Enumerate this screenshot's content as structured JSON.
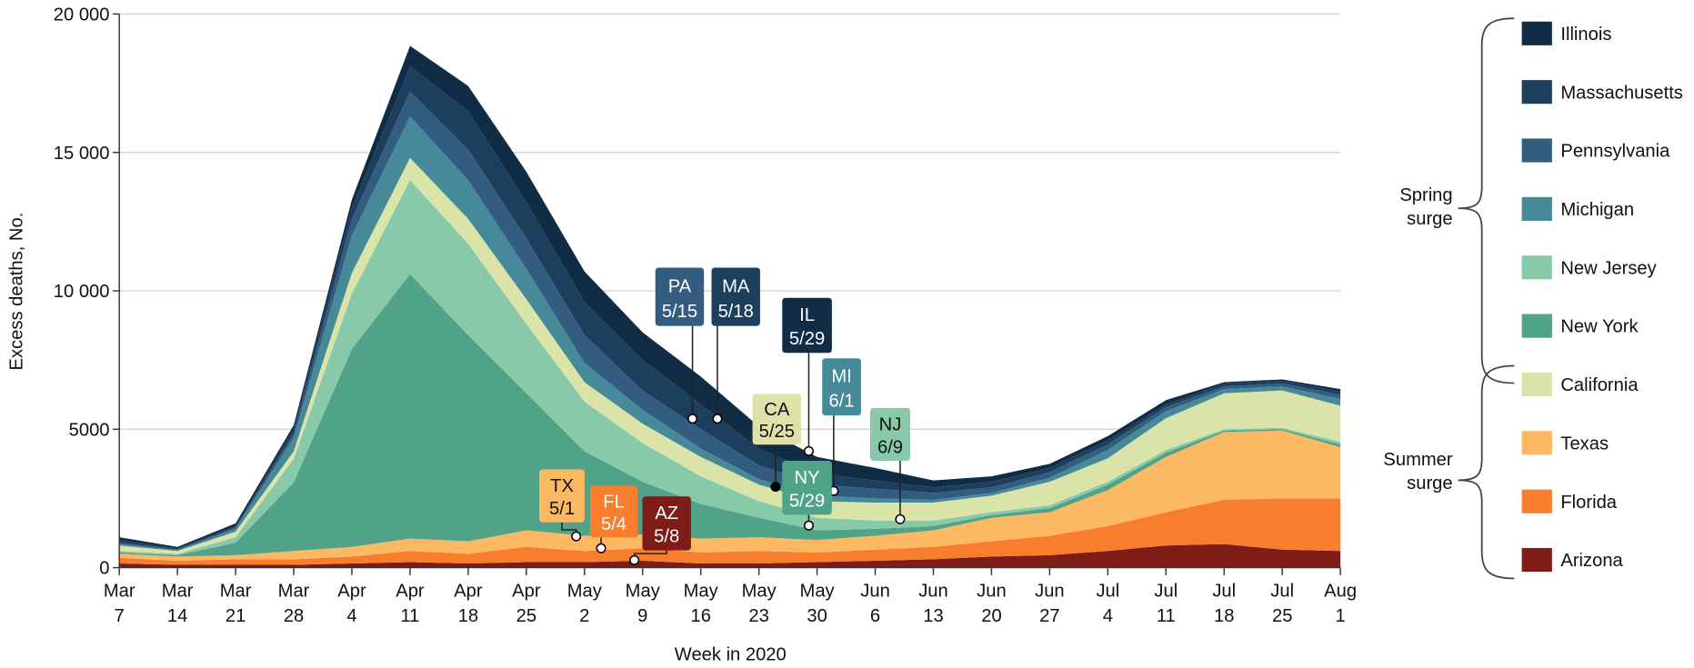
{
  "chart_data": {
    "type": "area",
    "stacked": true,
    "title": "",
    "xlabel": "Week in 2020",
    "ylabel": "Excess deaths, No.",
    "ylim": [
      0,
      20000
    ],
    "yticks": [
      0,
      5000,
      10000,
      15000,
      20000
    ],
    "ytick_labels": [
      "0",
      "5000",
      "10 000",
      "15 000",
      "20 000"
    ],
    "grid": "horizontal",
    "legend_position": "right",
    "categories": [
      [
        "Mar",
        "7"
      ],
      [
        "Mar",
        "14"
      ],
      [
        "Mar",
        "21"
      ],
      [
        "Mar",
        "28"
      ],
      [
        "Apr",
        "4"
      ],
      [
        "Apr",
        "11"
      ],
      [
        "Apr",
        "18"
      ],
      [
        "Apr",
        "25"
      ],
      [
        "May",
        "2"
      ],
      [
        "May",
        "9"
      ],
      [
        "May",
        "16"
      ],
      [
        "May",
        "23"
      ],
      [
        "May",
        "30"
      ],
      [
        "Jun",
        "6"
      ],
      [
        "Jun",
        "13"
      ],
      [
        "Jun",
        "20"
      ],
      [
        "Jun",
        "27"
      ],
      [
        "Jul",
        "4"
      ],
      [
        "Jul",
        "11"
      ],
      [
        "Jul",
        "18"
      ],
      [
        "Jul",
        "25"
      ],
      [
        "Aug",
        "1"
      ]
    ],
    "series_stack_order_bottom_to_top": [
      "Arizona",
      "Florida",
      "Texas",
      "New York",
      "New Jersey",
      "California",
      "Michigan",
      "Pennsylvania",
      "Massachusetts",
      "Illinois"
    ],
    "series": [
      {
        "name": "Arizona",
        "color": "#7e1c18",
        "values": [
          150,
          100,
          100,
          100,
          150,
          200,
          150,
          200,
          200,
          250,
          150,
          150,
          200,
          250,
          300,
          400,
          450,
          600,
          800,
          850,
          650,
          600
        ]
      },
      {
        "name": "Florida",
        "color": "#f87d2d",
        "values": [
          200,
          150,
          200,
          200,
          250,
          400,
          350,
          550,
          400,
          450,
          400,
          450,
          350,
          400,
          450,
          550,
          700,
          900,
          1200,
          1600,
          1850,
          1900
        ]
      },
      {
        "name": "Texas",
        "color": "#fdb863",
        "values": [
          150,
          150,
          150,
          300,
          350,
          450,
          450,
          600,
          550,
          500,
          500,
          500,
          450,
          500,
          600,
          850,
          850,
          1300,
          2000,
          2450,
          2450,
          1850
        ]
      },
      {
        "name": "New York",
        "color": "#50a388",
        "values": [
          50,
          50,
          450,
          2480,
          7150,
          9550,
          7450,
          4950,
          3050,
          1900,
          1250,
          700,
          350,
          250,
          150,
          100,
          150,
          200,
          150,
          50,
          50,
          100
        ]
      },
      {
        "name": "New Jersey",
        "color": "#87c9a9",
        "values": [
          50,
          50,
          200,
          860,
          2000,
          3400,
          3300,
          2500,
          1800,
          1400,
          1000,
          600,
          450,
          300,
          200,
          100,
          100,
          100,
          100,
          50,
          50,
          100
        ]
      },
      {
        "name": "California",
        "color": "#dbe4a8",
        "values": [
          200,
          100,
          200,
          260,
          750,
          800,
          900,
          900,
          700,
          700,
          700,
          600,
          600,
          650,
          650,
          600,
          850,
          850,
          1150,
          1300,
          1350,
          1300
        ]
      },
      {
        "name": "Michigan",
        "color": "#468a99",
        "values": [
          50,
          30,
          100,
          500,
          1350,
          1500,
          1400,
          1100,
          700,
          500,
          300,
          200,
          200,
          150,
          100,
          100,
          150,
          300,
          250,
          150,
          150,
          250
        ]
      },
      {
        "name": "Pennsylvania",
        "color": "#335d80",
        "values": [
          50,
          30,
          50,
          150,
          600,
          900,
          1100,
          1100,
          1000,
          700,
          700,
          500,
          400,
          350,
          250,
          200,
          200,
          200,
          150,
          100,
          100,
          150
        ]
      },
      {
        "name": "Massachusetts",
        "color": "#1d3f5e",
        "values": [
          100,
          30,
          50,
          150,
          400,
          900,
          1400,
          1300,
          1200,
          1100,
          900,
          600,
          400,
          300,
          200,
          200,
          150,
          150,
          100,
          100,
          100,
          100
        ]
      },
      {
        "name": "Illinois",
        "color": "#102d45",
        "values": [
          100,
          60,
          100,
          150,
          300,
          750,
          900,
          1100,
          1100,
          1000,
          1000,
          800,
          600,
          450,
          250,
          200,
          150,
          150,
          150,
          50,
          50,
          100
        ]
      }
    ],
    "legend": {
      "items": [
        "Illinois",
        "Massachusetts",
        "Pennsylvania",
        "Michigan",
        "New Jersey",
        "New York",
        "California",
        "Texas",
        "Florida",
        "Arizona"
      ],
      "groups": [
        {
          "label_lines": [
            "Spring",
            "surge"
          ],
          "members": [
            "Illinois",
            "Massachusetts",
            "Pennsylvania",
            "Michigan",
            "New Jersey",
            "New York",
            "California"
          ]
        },
        {
          "label_lines": [
            "Summer",
            "surge"
          ],
          "members": [
            "California",
            "Texas",
            "Florida",
            "Arizona"
          ]
        }
      ]
    },
    "annotations": [
      {
        "state": "PA",
        "date": "5/15",
        "value": 5380,
        "color": "#335d80",
        "text_color": "#ffffff"
      },
      {
        "state": "MA",
        "date": "5/18",
        "value": 5380,
        "color": "#1d3f5e",
        "text_color": "#ffffff"
      },
      {
        "state": "IL",
        "date": "5/29",
        "value": 4210,
        "color": "#102d45",
        "text_color": "#ffffff"
      },
      {
        "state": "CA",
        "date": "5/25",
        "value": 2920,
        "color": "#dfe2a8",
        "text_color": "#111111"
      },
      {
        "state": "MI",
        "date": "6/1",
        "value": 2770,
        "color": "#468a99",
        "text_color": "#ffffff"
      },
      {
        "state": "NJ",
        "date": "6/9",
        "value": 1750,
        "color": "#87c9a9",
        "text_color": "#111111"
      },
      {
        "state": "NY",
        "date": "5/29",
        "value": 1520,
        "color": "#50a388",
        "text_color": "#ffffff"
      },
      {
        "state": "TX",
        "date": "5/1",
        "value": 1130,
        "color": "#fdb863",
        "text_color": "#111111"
      },
      {
        "state": "FL",
        "date": "5/4",
        "value": 700,
        "color": "#f87d2d",
        "text_color": "#ffffff"
      },
      {
        "state": "AZ",
        "date": "5/8",
        "value": 270,
        "color": "#7e1c18",
        "text_color": "#ffffff"
      }
    ]
  }
}
